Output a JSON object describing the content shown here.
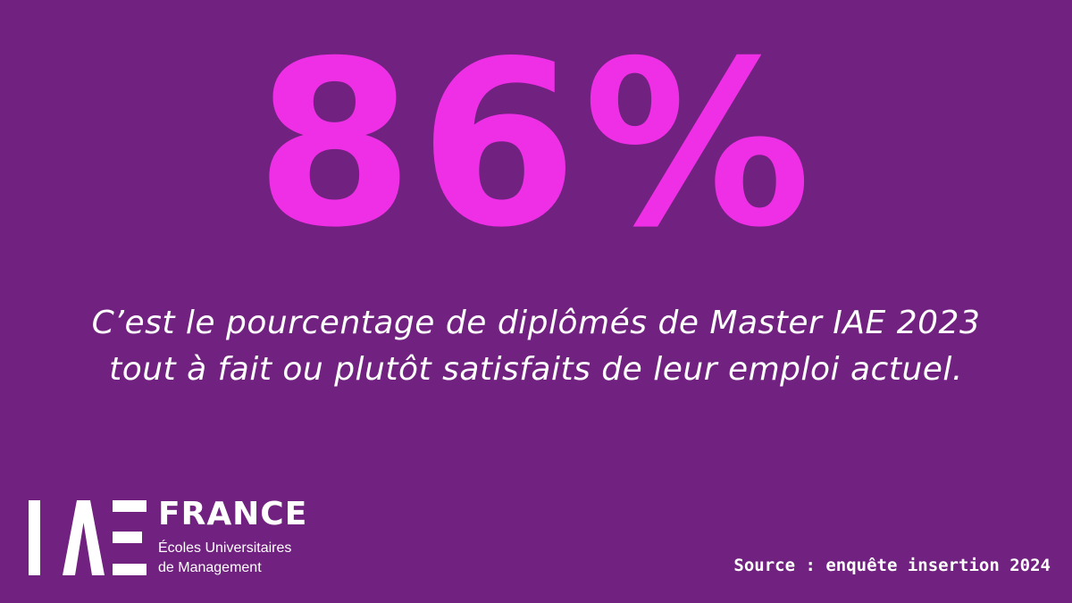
{
  "headline": {
    "value": "86%"
  },
  "caption": {
    "lines": [
      "C’est le pourcentage de diplômés de Master IAE 2023",
      "tout à fait ou plutôt satisfaits de leur emploi actuel."
    ]
  },
  "logo": {
    "title": "FRANCE",
    "subtitle_lines": [
      "Écoles Universitaires",
      "de Management"
    ],
    "mark_letters": "IAE"
  },
  "source": {
    "text": "Source : enquête insertion 2024"
  },
  "colors": {
    "background": "#71217f",
    "accent": "#ee2fe6",
    "text": "#ffffff"
  }
}
